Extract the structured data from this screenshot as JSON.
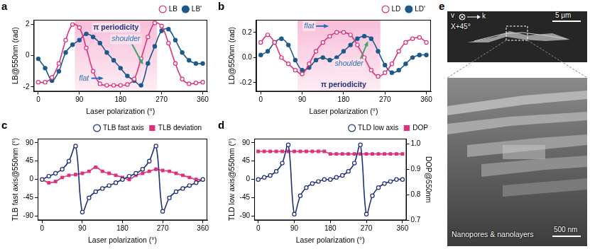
{
  "chart_data": [
    {
      "panel": "a",
      "type": "line",
      "x_label": "Laser polarization (°)",
      "y_label": "LB@550nm (rad)",
      "x": [
        0,
        15,
        30,
        45,
        60,
        75,
        90,
        105,
        120,
        135,
        150,
        165,
        180,
        195,
        210,
        225,
        240,
        255,
        270,
        285,
        300,
        315,
        330,
        345,
        360
      ],
      "series": [
        {
          "name": "LB",
          "color": "#e0307a",
          "marker": "circle_open",
          "line_style": "solid",
          "values": [
            -1.7,
            -1.7,
            -1.4,
            -0.5,
            1.0,
            2.0,
            1.8,
            0.5,
            -1.0,
            -1.8,
            -1.9,
            -1.9,
            -1.9,
            -1.85,
            -1.5,
            -0.2,
            1.2,
            2.1,
            1.9,
            0.8,
            -0.5,
            -1.5,
            -1.8,
            -1.75,
            -1.7
          ]
        },
        {
          "name": "LB'",
          "color": "#1d5a8c",
          "marker": "circle",
          "line_style": "solid",
          "values": [
            -0.2,
            -0.8,
            -1.6,
            -1.0,
            0.2,
            0.7,
            1.0,
            1.4,
            1.2,
            0.8,
            0.2,
            -0.3,
            -0.8,
            -1.3,
            -1.6,
            -1.9,
            -0.5,
            0.6,
            1.6,
            1.7,
            1.0,
            0.2,
            -0.3,
            -0.5,
            -0.5
          ]
        }
      ],
      "xlim": [
        -10,
        370
      ],
      "xticks": [
        0,
        90,
        180,
        270,
        360
      ],
      "ylim": [
        -2.3,
        2.3
      ],
      "yticks": [
        -2,
        0,
        2
      ],
      "shaded_x": [
        80,
        260
      ],
      "annotations": [
        "π periodicity",
        "flat",
        "shoulder"
      ],
      "grid": false,
      "legend": "top"
    },
    {
      "panel": "b",
      "type": "line",
      "x_label": "Laser polarization (°)",
      "y_label": "LD@550nm (rad)",
      "x": [
        0,
        15,
        30,
        45,
        60,
        75,
        90,
        105,
        120,
        135,
        150,
        165,
        180,
        195,
        210,
        225,
        240,
        255,
        270,
        285,
        300,
        315,
        330,
        345,
        360
      ],
      "series": [
        {
          "name": "LD",
          "color": "#e0307a",
          "marker": "circle_open",
          "line_style": "solid",
          "values": [
            0.12,
            0.18,
            0.12,
            0.0,
            -0.05,
            -0.1,
            -0.13,
            -0.05,
            0.05,
            0.12,
            0.17,
            0.2,
            0.2,
            0.18,
            0.1,
            0.0,
            -0.1,
            -0.15,
            -0.12,
            -0.05,
            0.05,
            0.12,
            0.15,
            0.16,
            0.12
          ]
        },
        {
          "name": "LD'",
          "color": "#1d5a8c",
          "marker": "circle",
          "line_style": "solid",
          "values": [
            0.02,
            0.05,
            0.12,
            0.15,
            0.1,
            -0.02,
            -0.1,
            -0.08,
            -0.02,
            0.0,
            -0.02,
            0.0,
            0.05,
            0.1,
            0.15,
            0.17,
            0.15,
            0.05,
            -0.06,
            -0.12,
            -0.1,
            -0.05,
            0.0,
            0.02,
            0.02
          ]
        }
      ],
      "xlim": [
        -10,
        370
      ],
      "xticks": [
        0,
        90,
        180,
        270,
        360
      ],
      "ylim": [
        -0.27,
        0.3
      ],
      "yticks": [
        -0.2,
        {
          "value": 0,
          "label": "0.0"
        },
        0.2
      ],
      "shaded_x": [
        80,
        260
      ],
      "annotations": [
        "π periodicity",
        "flat",
        "shoulder"
      ],
      "grid": false,
      "legend": "top"
    },
    {
      "panel": "c",
      "type": "line",
      "x_label": "Laser polarization (°)",
      "y_label": "TLB fast axis@550nm (°)",
      "x": [
        0,
        15,
        30,
        45,
        60,
        75,
        90,
        105,
        120,
        135,
        150,
        165,
        180,
        195,
        210,
        225,
        240,
        255,
        270,
        285,
        300,
        315,
        330,
        345,
        360
      ],
      "series": [
        {
          "name": "TLB fast axis",
          "color": "#1f2f7a",
          "marker": "circle_open",
          "line_style": "solid",
          "values": [
            0,
            8,
            15,
            25,
            45,
            82,
            -80,
            -45,
            -30,
            -22,
            -15,
            -8,
            0,
            8,
            15,
            25,
            45,
            82,
            -78,
            -45,
            -30,
            -22,
            -15,
            -8,
            0
          ]
        },
        {
          "name": "TLB deviation",
          "color": "#e0307a",
          "marker": "square",
          "line_style": "solid",
          "values": [
            0,
            -8,
            -5,
            5,
            10,
            12,
            15,
            20,
            30,
            20,
            15,
            10,
            5,
            0,
            10,
            15,
            20,
            25,
            22,
            20,
            15,
            10,
            5,
            0,
            0
          ]
        }
      ],
      "xlim": [
        -10,
        370
      ],
      "xticks": [
        0,
        90,
        180,
        270,
        360
      ],
      "ylim": [
        -100,
        100
      ],
      "yticks": [
        -90,
        -45,
        0,
        45,
        90
      ],
      "grid": false,
      "legend": "top"
    },
    {
      "panel": "d",
      "type": "line",
      "x_label": "Laser polarization (°)",
      "y_label": "TLD low axis@550nm (°)",
      "y2_label": "DOP@550nm",
      "x": [
        0,
        15,
        30,
        45,
        60,
        75,
        90,
        105,
        120,
        135,
        150,
        165,
        180,
        195,
        210,
        225,
        240,
        255,
        270,
        285,
        300,
        315,
        330,
        345,
        360
      ],
      "series": [
        {
          "name": "TLD low axis",
          "color": "#1f2f7a",
          "marker": "circle_open",
          "line_style": "solid",
          "values": [
            0,
            5,
            10,
            20,
            40,
            85,
            -85,
            -40,
            -20,
            -10,
            -5,
            0,
            0,
            5,
            10,
            20,
            40,
            85,
            -85,
            -40,
            -20,
            -10,
            -5,
            0,
            0
          ]
        },
        {
          "name": "DOP",
          "color": "#e0307a",
          "marker": "square",
          "line_style": "solid",
          "axis": "y2",
          "values": [
            0.97,
            0.97,
            0.97,
            0.97,
            0.97,
            0.97,
            0.97,
            0.97,
            0.97,
            0.97,
            0.97,
            0.97,
            0.96,
            0.96,
            0.96,
            0.96,
            0.96,
            0.96,
            0.96,
            0.96,
            0.96,
            0.96,
            0.96,
            0.96,
            0.96
          ]
        }
      ],
      "xlim": [
        -10,
        370
      ],
      "xticks": [
        0,
        90,
        180,
        270,
        360
      ],
      "ylim": [
        -100,
        100
      ],
      "yticks": [
        -90,
        -45,
        0,
        45,
        90
      ],
      "y2lim": [
        0.7,
        1.02
      ],
      "y2ticks": [
        0.7,
        0.8,
        0.9,
        {
          "value": 1,
          "label": "1.0"
        }
      ],
      "grid": false,
      "legend": "top"
    }
  ],
  "image_panel": {
    "panel": "e",
    "top": {
      "direction_v": "v",
      "direction_k": "k",
      "angle": "X+45°",
      "scale_bar": "5 μm"
    },
    "bottom": {
      "caption": "Nanopores & nanolayers",
      "scale_bar": "500 nm"
    }
  }
}
